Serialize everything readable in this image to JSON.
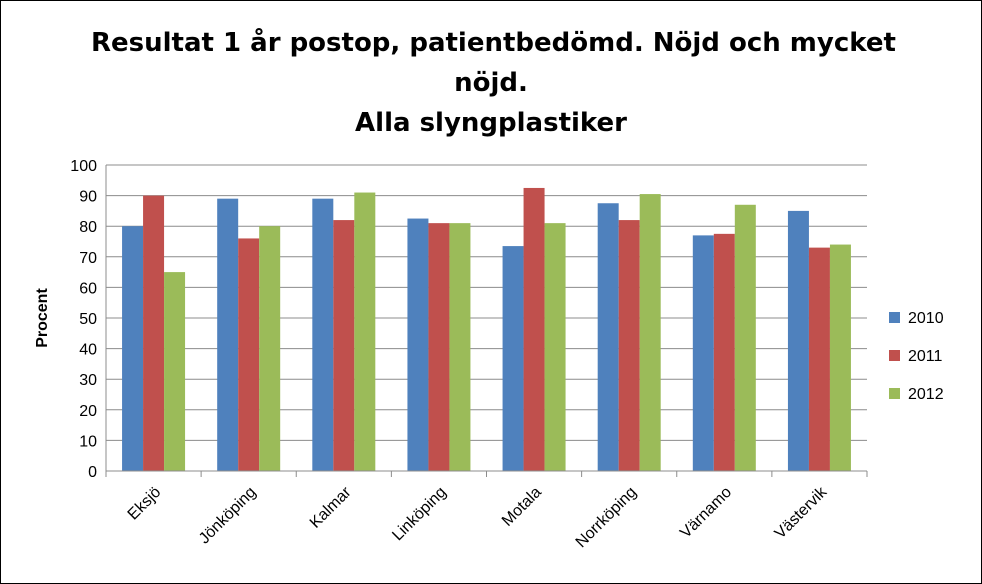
{
  "chart_data": {
    "type": "bar",
    "title_lines": [
      "Resultat 1 år postop, patientbedömd. Nöjd och mycket",
      "nöjd.",
      "Alla slyngplastiker"
    ],
    "xlabel": "",
    "ylabel": "Procent",
    "ylim": [
      0,
      100
    ],
    "yticks": [
      "0",
      "10",
      "20",
      "30",
      "40",
      "50",
      "60",
      "70",
      "80",
      "90",
      "100"
    ],
    "grid": true,
    "legend_position": "right",
    "categories": [
      "Eksjö",
      "Jönköping",
      "Kalmar",
      "Linköping",
      "Motala",
      "Norrköping",
      "Värnamo",
      "Västervik"
    ],
    "series": [
      {
        "name": "2010",
        "color": "#4f81bd",
        "values": [
          80,
          89,
          89,
          82.5,
          73.5,
          87.5,
          77,
          85
        ]
      },
      {
        "name": "2011",
        "color": "#c0504d",
        "values": [
          90,
          76,
          82,
          81,
          92.5,
          82,
          77.5,
          73
        ]
      },
      {
        "name": "2012",
        "color": "#9bbb59",
        "values": [
          65,
          80,
          91,
          81,
          81,
          90.5,
          87,
          74
        ]
      }
    ]
  }
}
